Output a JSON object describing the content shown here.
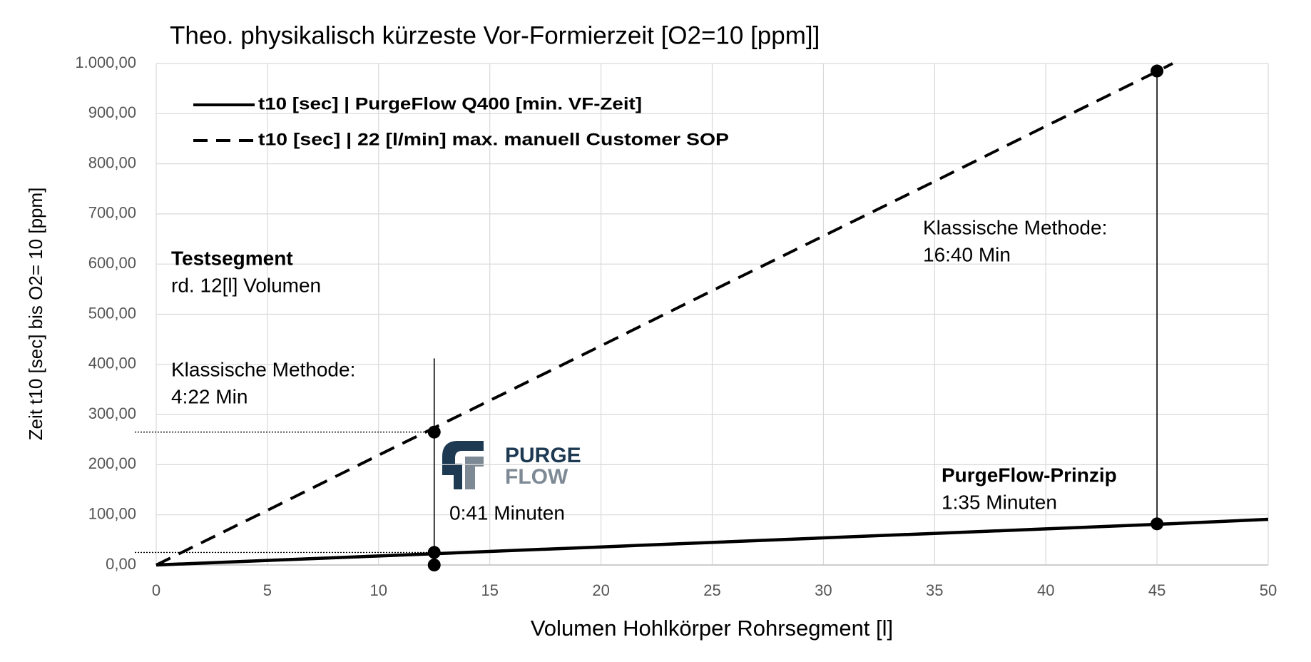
{
  "chart_data": {
    "type": "line",
    "title": "Theo. physikalisch kürzeste Vor-Formierzeit [O2=10 [ppm]]",
    "x_label": "Volumen Hohlkörper Rohrsegment [l]",
    "y_label": "Zeit  t10 [sec]  bis O2= 10  [ppm]",
    "xlim": [
      0,
      50
    ],
    "xticks": [
      0,
      5,
      10,
      15,
      20,
      25,
      30,
      35,
      40,
      45,
      50
    ],
    "ylim": [
      0,
      1000
    ],
    "yticks": [
      {
        "value": 0,
        "label": "0,00"
      },
      {
        "value": 100,
        "label": "100,00"
      },
      {
        "value": 200,
        "label": "200,00"
      },
      {
        "value": 300,
        "label": "300,00"
      },
      {
        "value": 400,
        "label": "400,00"
      },
      {
        "value": 500,
        "label": "500,00"
      },
      {
        "value": 600,
        "label": "600,00"
      },
      {
        "value": 700,
        "label": "700,00"
      },
      {
        "value": 800,
        "label": "800,00"
      },
      {
        "value": 900,
        "label": "900,00"
      },
      {
        "value": 1000,
        "label": "1.000,00"
      }
    ],
    "grid": true,
    "legend": "top-left",
    "series": [
      {
        "name": "t10 [sec] | PurgeFlow Q400 [min. VF-Zeit]",
        "color": "#000000",
        "dash": "solid",
        "x": [
          0,
          5,
          10,
          15,
          20,
          25,
          30,
          35,
          40,
          45,
          50
        ],
        "values": [
          0,
          9,
          18,
          27,
          36,
          45,
          54,
          63,
          72,
          81,
          91
        ]
      },
      {
        "name": "t10 [sec] | 22 [l/min] max. manuell Customer SOP",
        "color": "#000000",
        "dash": "dashed",
        "x": [
          0,
          5,
          10,
          15,
          20,
          25,
          30,
          35,
          40,
          45,
          45.7
        ],
        "values": [
          0,
          109,
          219,
          328,
          437,
          547,
          656,
          765,
          875,
          984,
          1000
        ]
      }
    ],
    "markers": {
      "x": [
        12.5,
        12.5,
        12.5,
        45,
        45
      ],
      "values": [
        265,
        25,
        0,
        985,
        82
      ]
    },
    "vlines": [
      {
        "x": 12.5,
        "values": [
          0,
          412
        ]
      },
      {
        "x": 45,
        "values": [
          82,
          985
        ]
      }
    ],
    "hlines": [
      {
        "values": [
          265
        ],
        "x": [
          12.5
        ]
      },
      {
        "values": [
          25
        ],
        "x": [
          12.5
        ]
      }
    ],
    "annotations": [
      {
        "lines": [
          "Testsegment",
          "rd. 12[l] Volumen"
        ]
      },
      {
        "lines": [
          "Klassische Methode:",
          "4:22 Min"
        ]
      },
      {
        "lines": [
          "Klassische Methode:",
          "16:40 Min"
        ]
      },
      {
        "lines": [
          "PurgeFlow-Prinzip",
          "1:35 Minuten"
        ]
      },
      {
        "lines": [
          "0:41 Minuten"
        ]
      }
    ],
    "logo": [
      "PURGE",
      "FLOW"
    ]
  }
}
